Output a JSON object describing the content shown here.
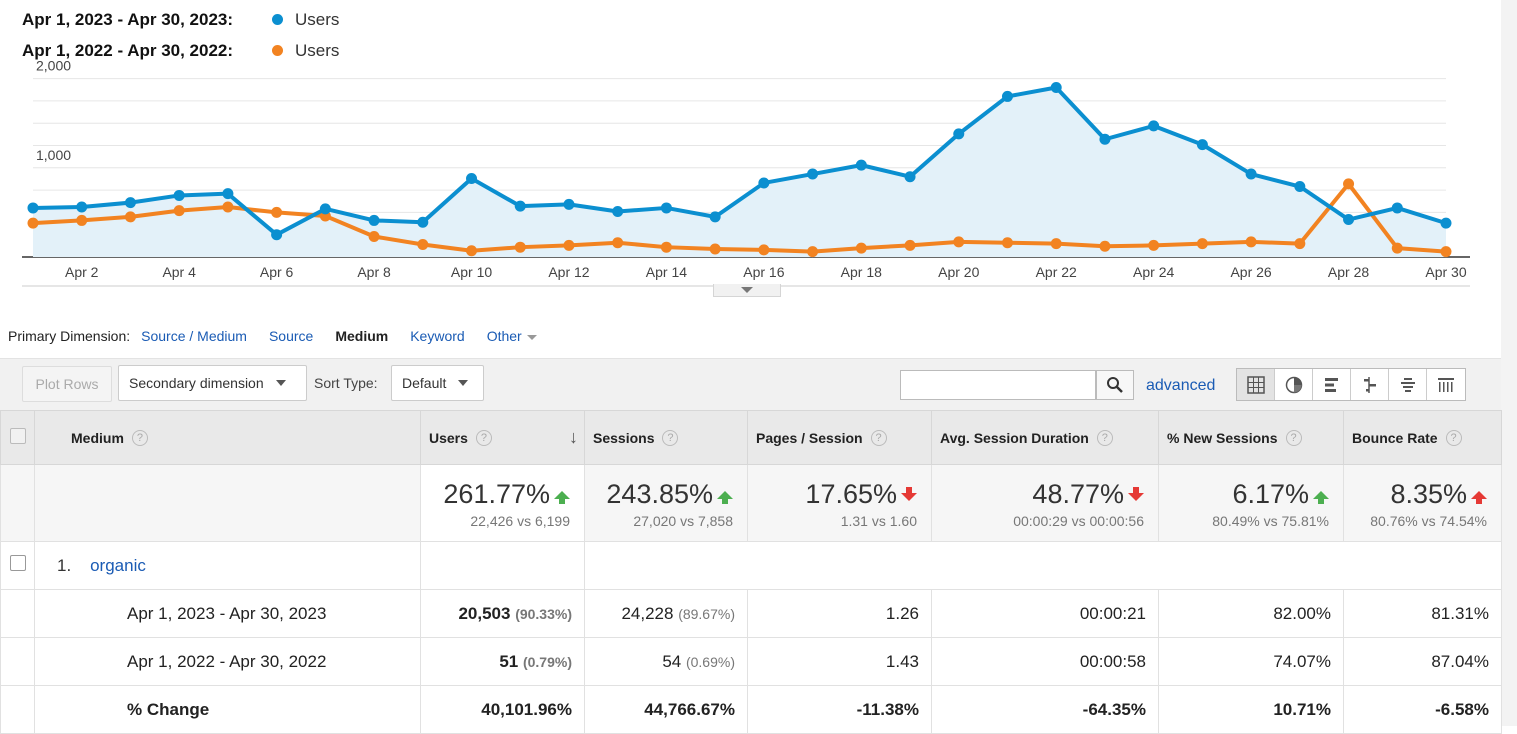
{
  "legend": [
    {
      "range": "Apr 1, 2023 - Apr 30, 2023:",
      "series": "Users",
      "color": "#0b8fd0"
    },
    {
      "range": "Apr 1, 2022 - Apr 30, 2022:",
      "series": "Users",
      "color": "#f28321"
    }
  ],
  "chart_data": {
    "type": "line",
    "ylim": [
      0,
      2000
    ],
    "yticks": [
      {
        "value": 1000,
        "label": "1,000"
      },
      {
        "value": 2000,
        "label": "2,000"
      }
    ],
    "x": [
      "Apr 1",
      "Apr 2",
      "Apr 3",
      "Apr 4",
      "Apr 5",
      "Apr 6",
      "Apr 7",
      "Apr 8",
      "Apr 9",
      "Apr 10",
      "Apr 11",
      "Apr 12",
      "Apr 13",
      "Apr 14",
      "Apr 15",
      "Apr 16",
      "Apr 17",
      "Apr 18",
      "Apr 19",
      "Apr 20",
      "Apr 21",
      "Apr 22",
      "Apr 23",
      "Apr 24",
      "Apr 25",
      "Apr 26",
      "Apr 27",
      "Apr 28",
      "Apr 29",
      "Apr 30"
    ],
    "xtick_labels": [
      "Apr 2",
      "Apr 4",
      "Apr 6",
      "Apr 8",
      "Apr 10",
      "Apr 12",
      "Apr 14",
      "Apr 16",
      "Apr 18",
      "Apr 20",
      "Apr 22",
      "Apr 24",
      "Apr 26",
      "Apr 28",
      "Apr 30"
    ],
    "series": [
      {
        "name": "Users",
        "color": "#0b8fd0",
        "fill": true,
        "values": [
          550,
          560,
          610,
          690,
          710,
          250,
          540,
          410,
          390,
          880,
          570,
          590,
          510,
          550,
          450,
          830,
          930,
          1030,
          900,
          1380,
          1800,
          1900,
          1320,
          1470,
          1260,
          930,
          790,
          420,
          550,
          380
        ]
      },
      {
        "name": "Users",
        "color": "#f28321",
        "fill": false,
        "values": [
          380,
          410,
          450,
          520,
          560,
          500,
          460,
          230,
          140,
          70,
          110,
          130,
          160,
          110,
          90,
          80,
          60,
          100,
          130,
          170,
          160,
          150,
          120,
          130,
          150,
          170,
          150,
          820,
          100,
          60
        ]
      }
    ]
  },
  "primary_dimension": {
    "label": "Primary Dimension:",
    "options": [
      {
        "label": "Source / Medium",
        "active": false
      },
      {
        "label": "Source",
        "active": false
      },
      {
        "label": "Medium",
        "active": true
      },
      {
        "label": "Keyword",
        "active": false
      },
      {
        "label": "Other",
        "active": false
      }
    ]
  },
  "toolbar": {
    "plot_rows": "Plot Rows",
    "secondary_dimension": "Secondary dimension",
    "sort_type_label": "Sort Type:",
    "sort_type_value": "Default",
    "search_placeholder": "",
    "advanced": "advanced",
    "views": [
      "table-view-icon",
      "pie-view-icon",
      "bar-view-icon",
      "comparison-view-icon",
      "term-cloud-icon",
      "pivot-view-icon"
    ]
  },
  "table": {
    "columns": [
      "Medium",
      "Users",
      "Sessions",
      "Pages / Session",
      "Avg. Session Duration",
      "% New Sessions",
      "Bounce Rate"
    ],
    "summary": [
      {
        "pct": "261.77%",
        "dir": "up-good",
        "sub": "22,426 vs 6,199"
      },
      {
        "pct": "243.85%",
        "dir": "up-good",
        "sub": "27,020 vs 7,858"
      },
      {
        "pct": "17.65%",
        "dir": "down-bad",
        "sub": "1.31 vs 1.60"
      },
      {
        "pct": "48.77%",
        "dir": "down-bad",
        "sub": "00:00:29 vs 00:00:56"
      },
      {
        "pct": "6.17%",
        "dir": "up-good",
        "sub": "80.49% vs 75.81%"
      },
      {
        "pct": "8.35%",
        "dir": "up-bad",
        "sub": "80.76% vs 74.54%"
      }
    ],
    "group": {
      "num": "1.",
      "name": "organic"
    },
    "rows": [
      {
        "label": "Apr 1, 2023 - Apr 30, 2023",
        "users": "20,503",
        "users_pct": "(90.33%)",
        "sessions": "24,228",
        "sessions_pct": "(89.67%)",
        "pages": "1.26",
        "duration": "00:00:21",
        "new": "82.00%",
        "bounce": "81.31%"
      },
      {
        "label": "Apr 1, 2022 - Apr 30, 2022",
        "users": "51",
        "users_pct": "(0.79%)",
        "sessions": "54",
        "sessions_pct": "(0.69%)",
        "pages": "1.43",
        "duration": "00:00:58",
        "new": "74.07%",
        "bounce": "87.04%"
      },
      {
        "label": "% Change",
        "users": "40,101.96%",
        "sessions": "44,766.67%",
        "pages": "-11.38%",
        "duration": "-64.35%",
        "new": "10.71%",
        "bounce": "-6.58%"
      }
    ]
  }
}
